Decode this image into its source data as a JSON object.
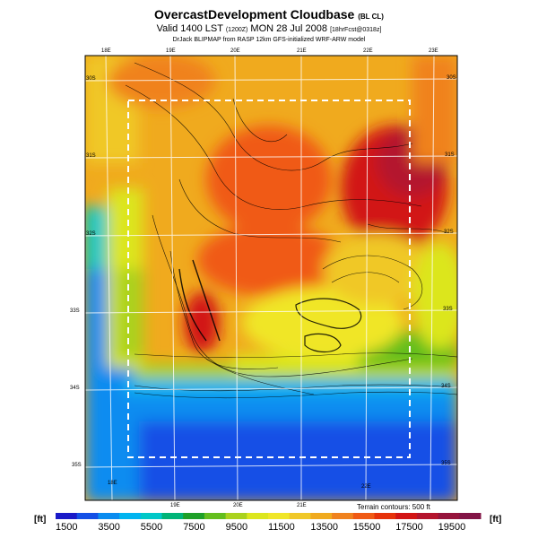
{
  "header": {
    "title_main": "OvercastDevelopment Cloudbase",
    "title_tag": "(BL CL)",
    "valid_line": "Valid 1400 LST",
    "valid_code": "(1200Z)",
    "valid_date": "MON 28 Jul 2008",
    "valid_tag": "[18hrFcst@0318z]",
    "credit": "DrJack BLIPMAP from RASP 12km GFS-initialized WRF-ARW model"
  },
  "map": {
    "lon_labels_top": [
      "18E",
      "19E",
      "20E",
      "21E",
      "22E",
      "23E"
    ],
    "lon_labels_bottom": [
      "18E",
      "19E",
      "20E",
      "21E",
      "22E"
    ],
    "lat_labels_left": [
      "30S",
      "31S",
      "32S",
      "33S",
      "34S",
      "35S"
    ],
    "lat_labels_right": [
      "30S",
      "31S",
      "32S",
      "33S",
      "34S",
      "35S"
    ]
  },
  "legend": {
    "unit_left": "[ft]",
    "unit_right": "[ft]",
    "terrain_note": "Terrain contours: 500 ft",
    "labels": [
      "1500",
      "3500",
      "5500",
      "7500",
      "9500",
      "11500",
      "13500",
      "15500",
      "17500",
      "19500"
    ],
    "colors": [
      "#1a1ac8",
      "#1450e6",
      "#0a8cf0",
      "#00b4f0",
      "#00c8c8",
      "#00b478",
      "#1ea028",
      "#64be1e",
      "#aad21e",
      "#dce61e",
      "#f0e628",
      "#f0c828",
      "#f0aa1e",
      "#f0821e",
      "#f05a14",
      "#e6320a",
      "#d21414",
      "#b4142d",
      "#96143c",
      "#821446"
    ]
  }
}
